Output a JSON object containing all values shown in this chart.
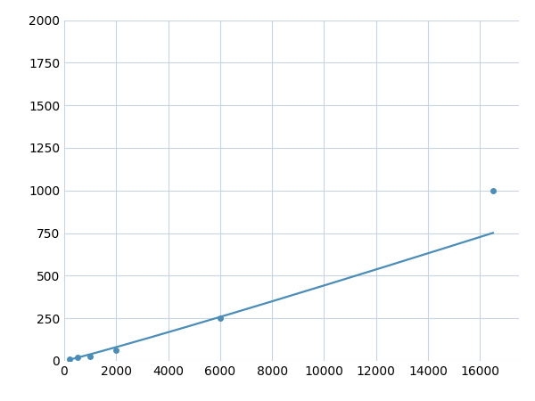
{
  "x": [
    200,
    500,
    1000,
    2000,
    6000,
    16500
  ],
  "y": [
    10,
    20,
    25,
    65,
    250,
    1000
  ],
  "line_color": "#4a8db8",
  "marker_color": "#4a8db8",
  "marker_size": 5,
  "line_width": 1.6,
  "xlim": [
    0,
    17500
  ],
  "ylim": [
    0,
    2000
  ],
  "xticks": [
    0,
    2000,
    4000,
    6000,
    8000,
    10000,
    12000,
    14000,
    16000
  ],
  "yticks": [
    0,
    250,
    500,
    750,
    1000,
    1250,
    1500,
    1750,
    2000
  ],
  "grid_color": "#c8d4e0",
  "bg_color": "#ffffff",
  "fig_bg": "#ffffff",
  "tick_fontsize": 10
}
